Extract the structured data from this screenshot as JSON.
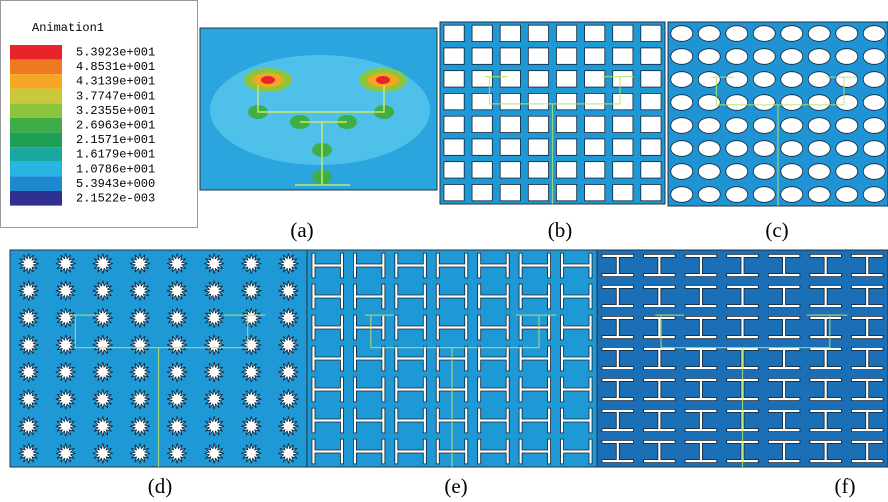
{
  "legend": {
    "title": "Animation1",
    "labels": [
      "5.3923e+001",
      "4.8531e+001",
      "4.3139e+001",
      "3.7747e+001",
      "3.2355e+001",
      "2.6963e+001",
      "2.1571e+001",
      "1.6179e+001",
      "1.0786e+001",
      "5.3943e+000",
      "2.1522e-003"
    ],
    "colors": [
      "#e8232a",
      "#f07a1f",
      "#f5a623",
      "#c9c83a",
      "#8cc63f",
      "#3fae49",
      "#1f9e55",
      "#19a7a0",
      "#27b6e4",
      "#1e88d0",
      "#2e3192"
    ]
  },
  "panels": [
    {
      "label": "(a)"
    },
    {
      "label": "(b)"
    },
    {
      "label": "(c)"
    },
    {
      "label": "(d)"
    },
    {
      "label": "(e)"
    },
    {
      "label": "(f)"
    }
  ]
}
